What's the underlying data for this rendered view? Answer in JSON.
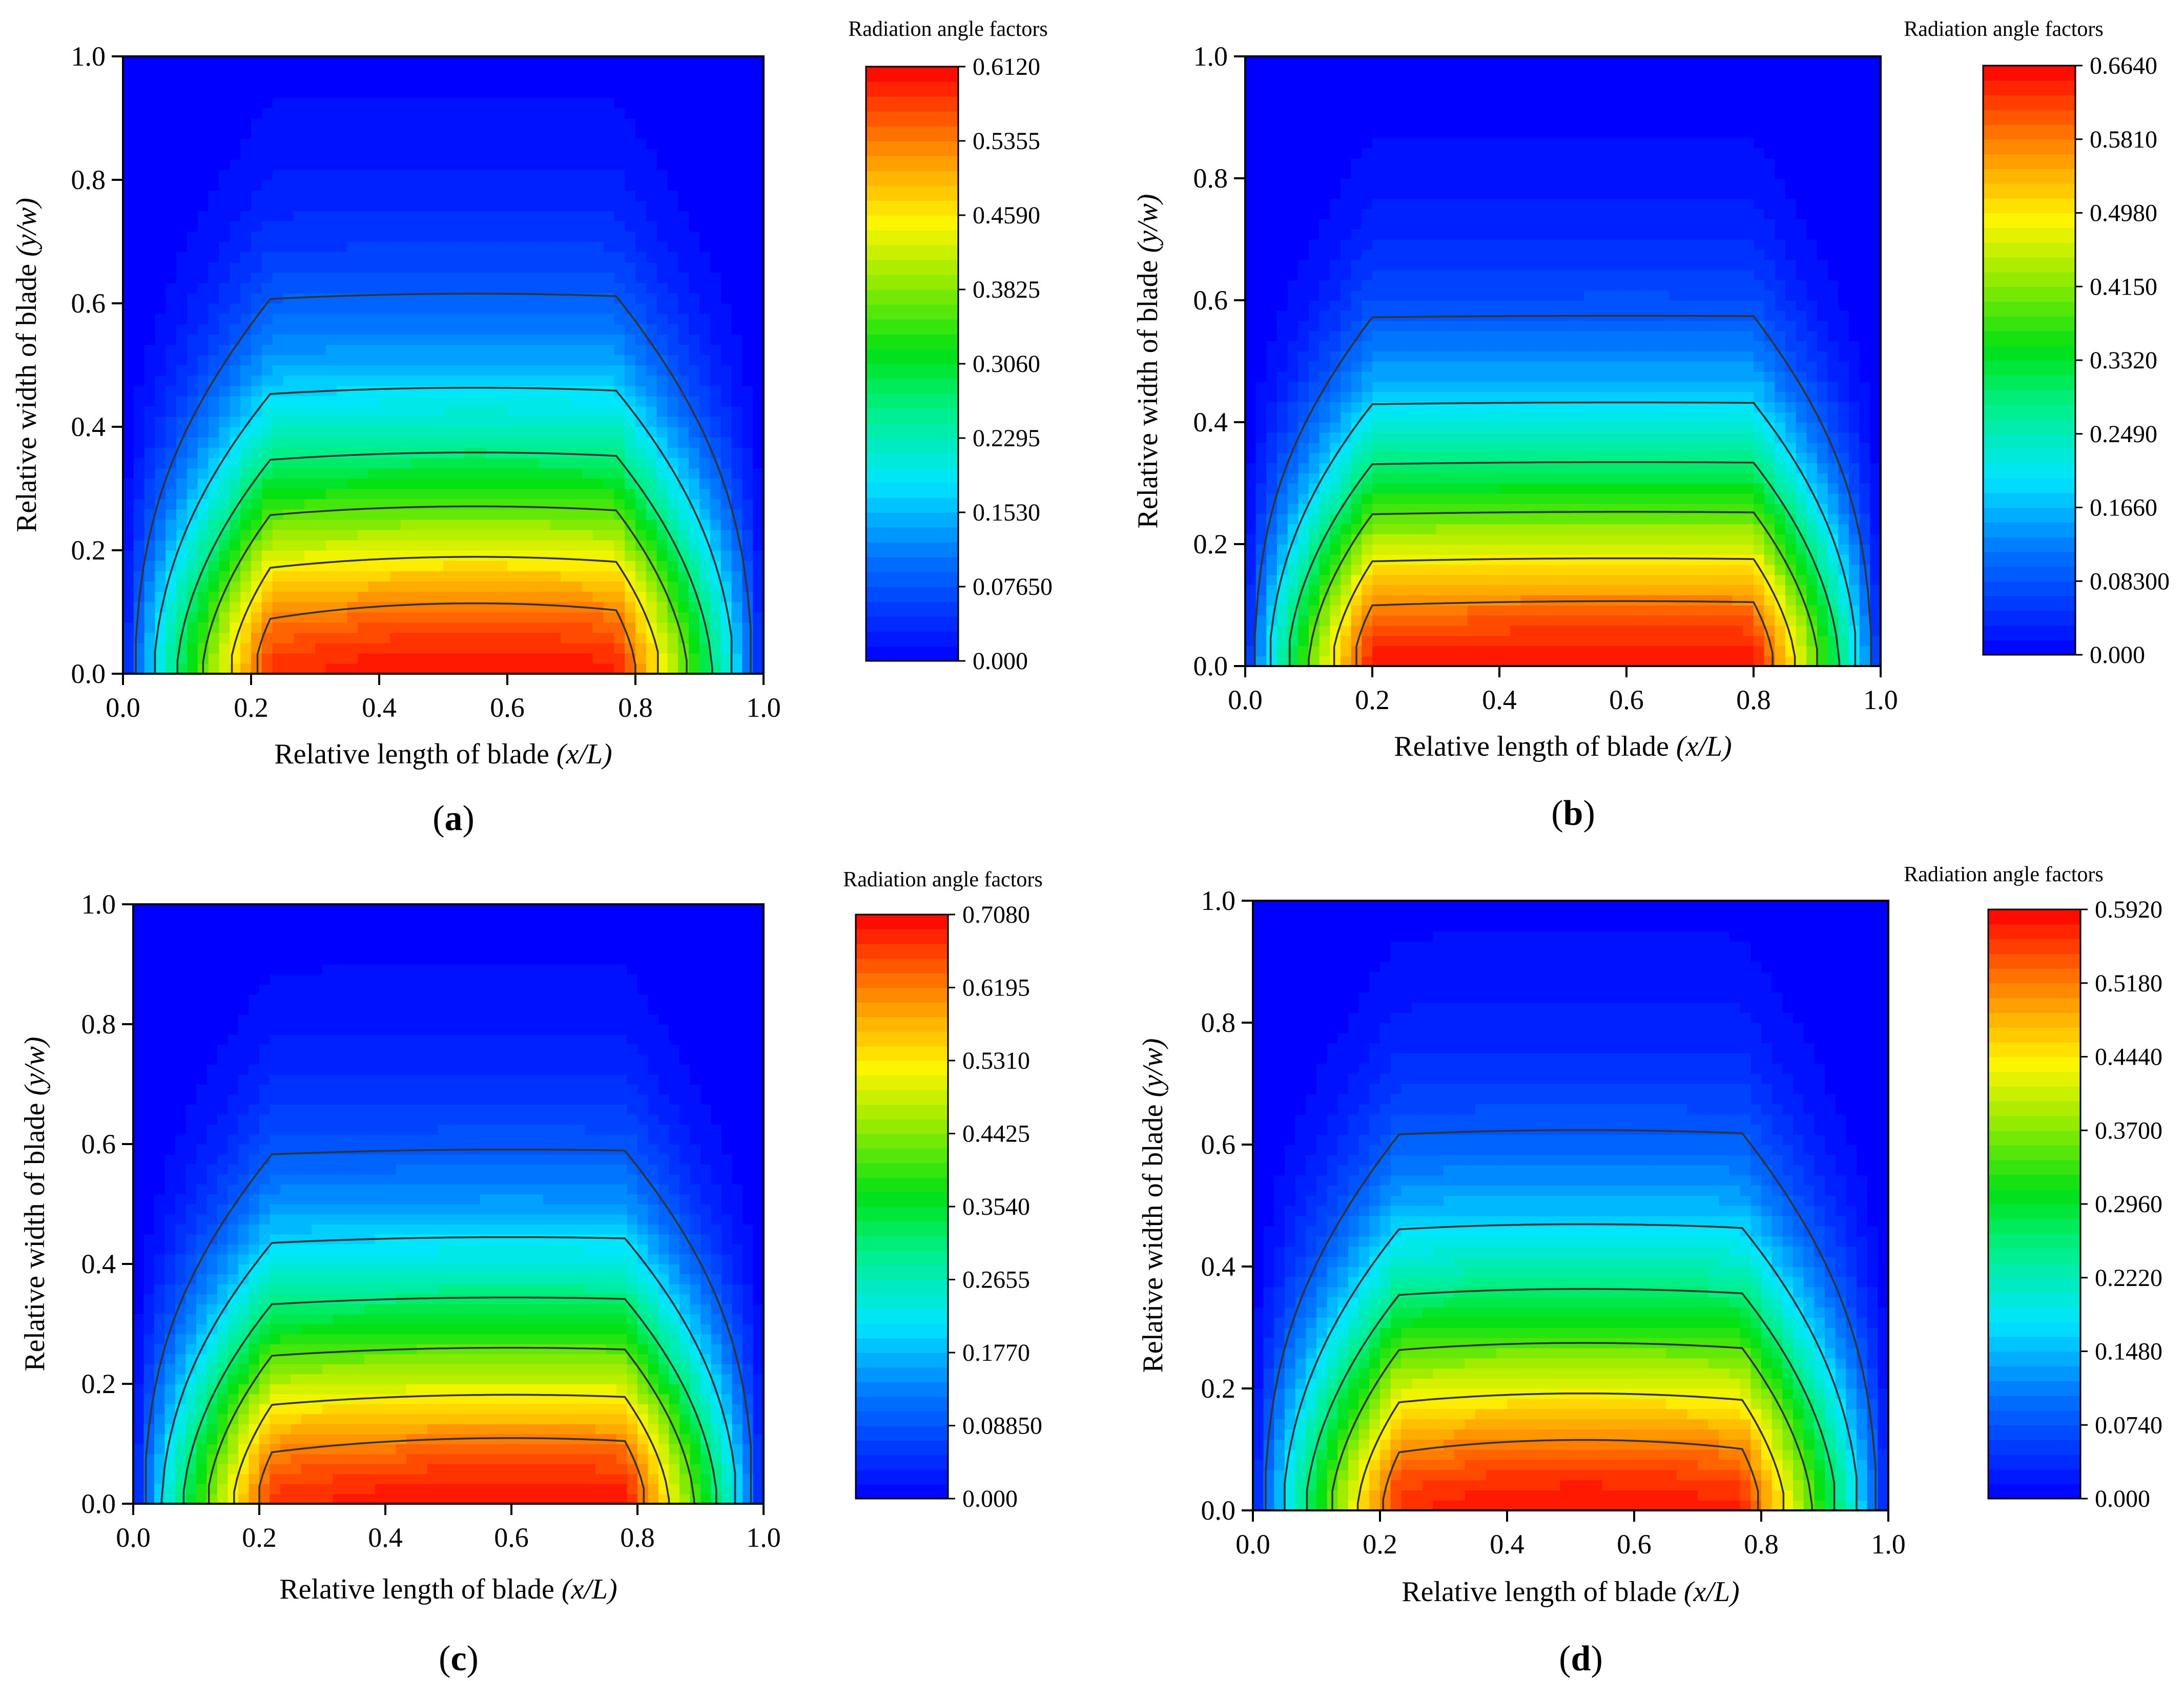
{
  "figure": {
    "panels": [
      {
        "label_text": "(a)",
        "label_letter": "a"
      },
      {
        "label_text": "(b)",
        "label_letter": "b"
      },
      {
        "label_text": "(c)",
        "label_letter": "c"
      },
      {
        "label_text": "(d)",
        "label_letter": "d"
      }
    ]
  },
  "chart_data": [
    {
      "type": "heatmap",
      "panel": "a",
      "title": "",
      "xlabel": "Relative length of blade",
      "xlabel_italic": "(x/L)",
      "ylabel": "Relative width of blade",
      "ylabel_italic": "(y/w)",
      "xlim": [
        0,
        1
      ],
      "ylim": [
        0,
        1
      ],
      "xticks": [
        "0.0",
        "0.2",
        "0.4",
        "0.6",
        "0.8",
        "1.0"
      ],
      "yticks": [
        "0.0",
        "0.2",
        "0.4",
        "0.6",
        "0.8",
        "1.0"
      ],
      "colorbar": {
        "title": "Radiation angle factors",
        "min": 0,
        "max": 0.612,
        "ticks": [
          "0.6120",
          "0.5355",
          "0.4590",
          "0.3825",
          "0.3060",
          "0.2295",
          "0.1530",
          "0.07650",
          "0.000"
        ]
      },
      "field": {
        "peak_x": 0.55,
        "peak_value": 0.612,
        "base_y_fraction": 0.75,
        "edge_width": 0.23,
        "skew": 0.1
      }
    },
    {
      "type": "heatmap",
      "panel": "b",
      "title": "",
      "xlabel": "Relative length of blade",
      "xlabel_italic": "(x/L)",
      "ylabel": "Relative width of blade",
      "ylabel_italic": "(y/w)",
      "xlim": [
        0,
        1
      ],
      "ylim": [
        0,
        1
      ],
      "xticks": [
        "0.0",
        "0.2",
        "0.4",
        "0.6",
        "0.8",
        "1.0"
      ],
      "yticks": [
        "0.0",
        "0.2",
        "0.4",
        "0.6",
        "0.8",
        "1.0"
      ],
      "colorbar": {
        "title": "Radiation angle factors",
        "min": 0,
        "max": 0.664,
        "ticks": [
          "0.6640",
          "0.5810",
          "0.4980",
          "0.4150",
          "0.3320",
          "0.2490",
          "0.1660",
          "0.08300",
          "0.000"
        ]
      },
      "field": {
        "peak_x": 0.6,
        "peak_value": 0.664,
        "base_y_fraction": 0.7,
        "edge_width": 0.2,
        "skew": 0.02
      }
    },
    {
      "type": "heatmap",
      "panel": "c",
      "title": "",
      "xlabel": "Relative length of blade",
      "xlabel_italic": "(x/L)",
      "ylabel": "Relative width of blade",
      "ylabel_italic": "(y/w)",
      "xlim": [
        0,
        1
      ],
      "ylim": [
        0,
        1
      ],
      "xticks": [
        "0.0",
        "0.2",
        "0.4",
        "0.6",
        "0.8",
        "1.0"
      ],
      "yticks": [
        "0.0",
        "0.2",
        "0.4",
        "0.6",
        "0.8",
        "1.0"
      ],
      "colorbar": {
        "title": "Radiation angle factors",
        "min": 0,
        "max": 0.708,
        "ticks": [
          "0.7080",
          "0.6195",
          "0.5310",
          "0.4425",
          "0.3540",
          "0.2655",
          "0.1770",
          "0.08850",
          "0.000"
        ]
      },
      "field": {
        "peak_x": 0.6,
        "peak_value": 0.708,
        "base_y_fraction": 0.72,
        "edge_width": 0.22,
        "skew": 0.07
      }
    },
    {
      "type": "heatmap",
      "panel": "d",
      "title": "",
      "xlabel": "Relative length of blade",
      "xlabel_italic": "(x/L)",
      "ylabel": "Relative width of blade",
      "ylabel_italic": "(y/w)",
      "xlim": [
        0,
        1
      ],
      "ylim": [
        0,
        1
      ],
      "xticks": [
        "0.0",
        "0.2",
        "0.4",
        "0.6",
        "0.8",
        "1.0"
      ],
      "yticks": [
        "0.0",
        "0.2",
        "0.4",
        "0.6",
        "0.8",
        "1.0"
      ],
      "colorbar": {
        "title": "Radiation angle factors",
        "min": 0,
        "max": 0.592,
        "ticks": [
          "0.5920",
          "0.5180",
          "0.4440",
          "0.3700",
          "0.2960",
          "0.2220",
          "0.1480",
          "0.0740",
          "0.000"
        ]
      },
      "field": {
        "peak_x": 0.52,
        "peak_value": 0.592,
        "base_y_fraction": 0.76,
        "edge_width": 0.23,
        "skew": 0.1
      }
    }
  ]
}
